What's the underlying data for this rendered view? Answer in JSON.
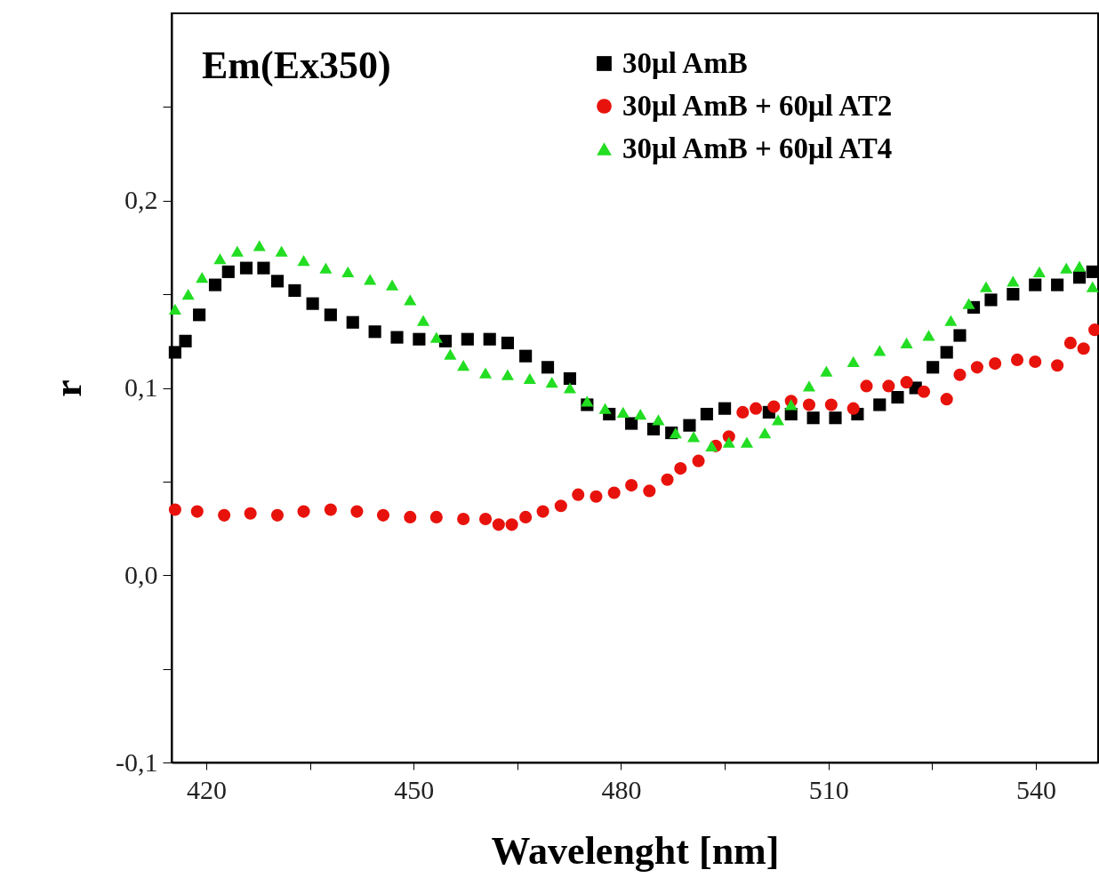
{
  "chart_data": {
    "type": "scatter",
    "title": "Em(Ex350)",
    "xlabel": "Wavelenght [nm]",
    "ylabel": "r",
    "xlim": [
      415,
      549
    ],
    "ylim": [
      -0.1,
      0.3
    ],
    "xticks": [
      420,
      {
        "value": 435,
        "label": null
      },
      450,
      {
        "value": 465,
        "label": null
      },
      480,
      {
        "value": 495,
        "label": null
      },
      510,
      {
        "value": 525,
        "label": null
      },
      540
    ],
    "yticks": [
      {
        "value": -0.1,
        "label": "-0,1"
      },
      {
        "value": -0.05,
        "label": null
      },
      {
        "value": 0,
        "label": "0,0"
      },
      {
        "value": 0.05,
        "label": null
      },
      {
        "value": 0.1,
        "label": "0,1"
      },
      {
        "value": 0.15,
        "label": null
      },
      {
        "value": 0.2,
        "label": "0,2"
      },
      {
        "value": 0.25,
        "label": null
      }
    ],
    "legend": "top right",
    "grid": false,
    "series": [
      {
        "name": "30μl AmB",
        "color": "#000000",
        "marker": "square",
        "x": [
          415.5,
          417,
          419,
          421.3,
          423.2,
          425.8,
          428.3,
          430.3,
          432.8,
          435.4,
          438,
          441.2,
          444.4,
          447.6,
          450.8,
          454.6,
          457.8,
          461,
          463.6,
          466.2,
          469.4,
          472.6,
          475.1,
          478.3,
          481.5,
          484.7,
          487.3,
          489.9,
          492.4,
          495,
          501.4,
          504.6,
          507.8,
          511,
          514.2,
          517.4,
          520,
          522.6,
          525.1,
          527.1,
          529,
          531,
          533.5,
          536.7,
          539.9,
          543.1,
          546.3,
          548.2
        ],
        "values": [
          0.119,
          0.125,
          0.139,
          0.155,
          0.162,
          0.164,
          0.164,
          0.157,
          0.152,
          0.145,
          0.139,
          0.135,
          0.13,
          0.127,
          0.126,
          0.125,
          0.126,
          0.126,
          0.124,
          0.117,
          0.111,
          0.105,
          0.091,
          0.086,
          0.081,
          0.078,
          0.076,
          0.08,
          0.086,
          0.089,
          0.087,
          0.086,
          0.084,
          0.084,
          0.086,
          0.091,
          0.095,
          0.1,
          0.111,
          0.119,
          0.128,
          0.143,
          0.147,
          0.15,
          0.155,
          0.155,
          0.159,
          0.162
        ]
      },
      {
        "name": "30μl AmB + 60μl  AT2",
        "color": "#e8120c",
        "marker": "circle",
        "x": [
          415.5,
          418.7,
          422.6,
          426.4,
          430.3,
          434.1,
          438,
          441.8,
          445.6,
          449.5,
          453.3,
          457.2,
          460.4,
          462.3,
          464.2,
          466.2,
          468.7,
          471.3,
          473.8,
          476.4,
          479,
          481.5,
          484.1,
          486.7,
          488.6,
          491.2,
          493.7,
          495.6,
          497.6,
          499.5,
          502.1,
          504.6,
          507.2,
          510.4,
          513.6,
          515.5,
          518.7,
          521.3,
          523.8,
          527.1,
          529,
          531.5,
          534.1,
          537.3,
          539.9,
          543.1,
          545,
          546.9,
          548.5
        ],
        "values": [
          0.035,
          0.034,
          0.032,
          0.033,
          0.032,
          0.034,
          0.035,
          0.034,
          0.032,
          0.031,
          0.031,
          0.03,
          0.03,
          0.027,
          0.027,
          0.031,
          0.034,
          0.037,
          0.043,
          0.042,
          0.044,
          0.048,
          0.045,
          0.051,
          0.057,
          0.061,
          0.069,
          0.074,
          0.087,
          0.089,
          0.09,
          0.093,
          0.091,
          0.091,
          0.089,
          0.101,
          0.101,
          0.103,
          0.098,
          0.094,
          0.107,
          0.111,
          0.113,
          0.115,
          0.114,
          0.112,
          0.124,
          0.121,
          0.131
        ]
      },
      {
        "name": "30μl AmB + 60μl  AT4",
        "color": "#22dd22",
        "marker": "triangle",
        "x": [
          415.5,
          417.4,
          419.4,
          422,
          424.5,
          427.7,
          430.9,
          434.1,
          437.3,
          440.5,
          443.7,
          446.9,
          449.5,
          451.4,
          453.3,
          455.3,
          457.2,
          460.4,
          463.6,
          466.8,
          470,
          472.6,
          475.1,
          477.7,
          480.3,
          482.8,
          485.4,
          487.9,
          490.5,
          493.1,
          495.6,
          498.2,
          500.8,
          502.7,
          504.6,
          507.2,
          509.7,
          513.6,
          517.4,
          521.3,
          524.5,
          527.7,
          530.3,
          532.8,
          536.7,
          540.5,
          544.4,
          546.3,
          548.2
        ],
        "values": [
          0.142,
          0.15,
          0.159,
          0.169,
          0.173,
          0.176,
          0.173,
          0.168,
          0.164,
          0.162,
          0.158,
          0.155,
          0.147,
          0.136,
          0.127,
          0.118,
          0.112,
          0.108,
          0.107,
          0.105,
          0.103,
          0.1,
          0.093,
          0.089,
          0.087,
          0.086,
          0.083,
          0.076,
          0.074,
          0.069,
          0.071,
          0.071,
          0.076,
          0.083,
          0.091,
          0.101,
          0.109,
          0.114,
          0.12,
          0.124,
          0.128,
          0.136,
          0.145,
          0.154,
          0.157,
          0.162,
          0.164,
          0.165,
          0.154
        ]
      }
    ]
  }
}
